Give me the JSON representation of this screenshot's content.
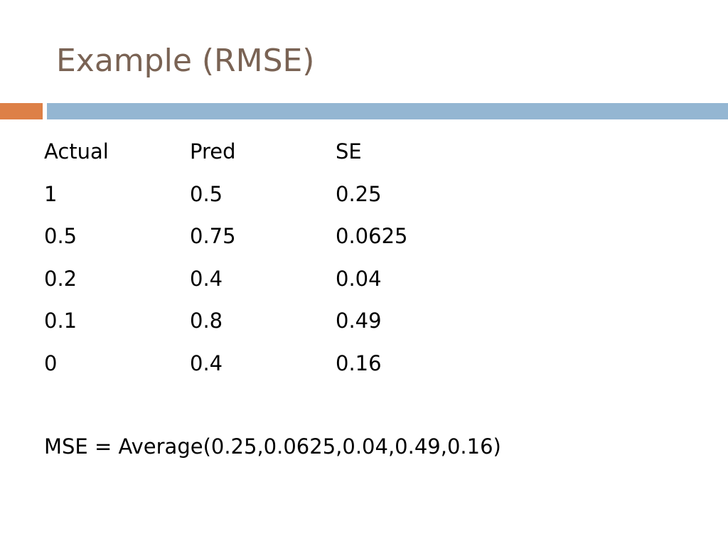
{
  "slide": {
    "title": "Example (RMSE)",
    "colors": {
      "title": "#7a6354",
      "accent_bar": "#dd8047",
      "main_bar": "#94b6d2"
    },
    "table": {
      "headers": [
        "Actual",
        "Pred",
        "SE"
      ],
      "rows": [
        [
          "1",
          "0.5",
          "0.25"
        ],
        [
          "0.5",
          "0.75",
          "0.0625"
        ],
        [
          "0.2",
          "0.4",
          "0.04"
        ],
        [
          "0.1",
          "0.8",
          "0.49"
        ],
        [
          "0",
          "0.4",
          "0.16"
        ]
      ]
    },
    "formula": "MSE = Average(0.25,0.0625,0.04,0.49,0.16)"
  }
}
